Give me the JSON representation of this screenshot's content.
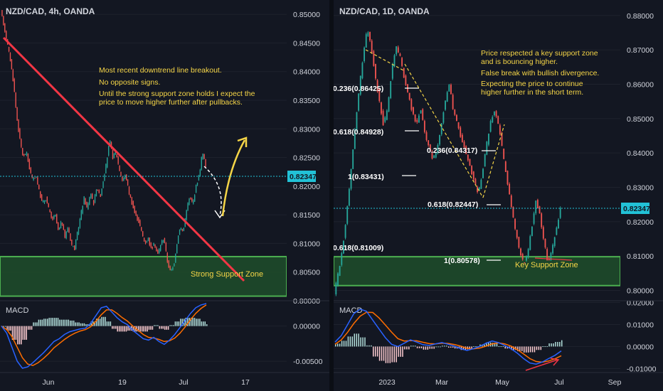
{
  "colors": {
    "background": "#131722",
    "candle_up": "#26a69a",
    "candle_down": "#ef5350",
    "zone_fill": "#1f4d2a",
    "zone_border": "#4caf50",
    "trendline": "#f23645",
    "annotation": "#f5d547",
    "price_box": "#22c1d6",
    "macd_line": "#2962ff",
    "signal_line": "#ff6d00"
  },
  "left": {
    "symbol": "NZD/CAD, 4h, OANDA",
    "annotations": [
      "Most recent downtrend line breakout.",
      "No opposite signs.",
      "Until the strong support zone holds I expect the",
      "price to move higher further after pullbacks."
    ],
    "zone_label": "Strong Support Zone",
    "current_price": "0.82347",
    "macd_label": "MACD"
  },
  "right": {
    "symbol": "NZD/CAD, 1D, OANDA",
    "annotations": [
      "Price respected a key support zone",
      "and is bouncing higher.",
      "False break with bullish divergence.",
      "Expecting the price to continue",
      "higher further in the short term."
    ],
    "fib_labels": [
      "0.236(0.86425)",
      "0.618(0.84928)",
      "0.236(0.84317)",
      "1(0.83431)",
      "0.618(0.82447)",
      "0.618(0.81009)",
      "1(0.80578)"
    ],
    "zone_label": "Key Support Zone",
    "current_price": "0.82347",
    "macd_label": "MACD"
  },
  "chart_data": [
    {
      "type": "candlestick",
      "title": "NZD/CAD, 4h, OANDA",
      "ylim": [
        0.8,
        0.8525
      ],
      "y_ticks": [
        "0.85000",
        "0.84500",
        "0.84000",
        "0.83500",
        "0.83000",
        "0.82500",
        "0.82000",
        "0.81500",
        "0.81000",
        "0.80500",
        "0.80000"
      ],
      "x_ticks": [
        "Jun",
        "19",
        "Jul",
        "17"
      ],
      "price_path": [
        0.8505,
        0.848,
        0.845,
        0.842,
        0.838,
        0.832,
        0.828,
        0.825,
        0.826,
        0.823,
        0.821,
        0.822,
        0.819,
        0.817,
        0.818,
        0.816,
        0.814,
        0.815,
        0.812,
        0.814,
        0.811,
        0.813,
        0.81,
        0.809,
        0.812,
        0.815,
        0.818,
        0.816,
        0.819,
        0.817,
        0.82,
        0.818,
        0.821,
        0.824,
        0.828,
        0.825,
        0.826,
        0.823,
        0.821,
        0.822,
        0.819,
        0.817,
        0.815,
        0.814,
        0.812,
        0.81,
        0.811,
        0.809,
        0.81,
        0.808,
        0.81,
        0.811,
        0.807,
        0.805,
        0.806,
        0.81,
        0.813,
        0.812,
        0.816,
        0.818,
        0.817,
        0.82,
        0.822,
        0.826,
        0.8235
      ],
      "support_zone": [
        0.8008,
        0.8077
      ],
      "current_price": 0.82347,
      "macd_ylim": [
        -0.0065,
        0.0035
      ],
      "macd_ticks": [
        "0.00000",
        "-0.00500"
      ],
      "macd_line": [
        0,
        -0.001,
        -0.003,
        -0.005,
        -0.006,
        -0.0058,
        -0.0052,
        -0.0045,
        -0.0038,
        -0.003,
        -0.0022,
        -0.0018,
        -0.0012,
        -0.0008,
        -0.0006,
        -0.0004,
        -0.0003,
        0.0004,
        0.0015,
        0.0026,
        0.0028,
        0.002,
        0.0012,
        0.0006,
        0.0002,
        -0.0006,
        -0.0012,
        -0.0018,
        -0.002,
        -0.0016,
        -0.0022,
        -0.0026,
        -0.002,
        -0.0012,
        -0.0002,
        0.0008,
        0.0018,
        0.0026,
        0.003,
        0.0032
      ],
      "signal_line": [
        0,
        -0.0005,
        -0.0015,
        -0.003,
        -0.0045,
        -0.0054,
        -0.0056,
        -0.0052,
        -0.0046,
        -0.0039,
        -0.0031,
        -0.0025,
        -0.0019,
        -0.0014,
        -0.001,
        -0.0007,
        -0.0005,
        -0.0001,
        0.0007,
        0.0016,
        0.0023,
        0.0023,
        0.0018,
        0.0012,
        0.0007,
        0.0,
        -0.0006,
        -0.0012,
        -0.0016,
        -0.0017,
        -0.0019,
        -0.0022,
        -0.0021,
        -0.0017,
        -0.001,
        -0.0001,
        0.0009,
        0.0018,
        0.0025,
        0.003
      ]
    },
    {
      "type": "candlestick",
      "title": "NZD/CAD, 1D, OANDA",
      "ylim": [
        0.797,
        0.8845
      ],
      "y_ticks": [
        "0.88000",
        "0.87000",
        "0.86000",
        "0.85000",
        "0.84000",
        "0.83000",
        "0.82000",
        "0.81000",
        "0.80000"
      ],
      "x_ticks": [
        "2023",
        "Mar",
        "May",
        "Jul",
        "Sep"
      ],
      "price_path": [
        0.799,
        0.805,
        0.812,
        0.822,
        0.834,
        0.846,
        0.858,
        0.868,
        0.876,
        0.871,
        0.862,
        0.855,
        0.848,
        0.853,
        0.864,
        0.871,
        0.868,
        0.862,
        0.857,
        0.852,
        0.848,
        0.853,
        0.846,
        0.842,
        0.838,
        0.841,
        0.848,
        0.855,
        0.86,
        0.852,
        0.848,
        0.844,
        0.84,
        0.836,
        0.832,
        0.828,
        0.834,
        0.842,
        0.849,
        0.852,
        0.848,
        0.84,
        0.832,
        0.825,
        0.818,
        0.812,
        0.808,
        0.81,
        0.818,
        0.826,
        0.822,
        0.814,
        0.808,
        0.812,
        0.818,
        0.8235
      ],
      "support_zone": [
        0.8014,
        0.8098
      ],
      "current_price": 0.82347,
      "macd_ylim": [
        -0.0115,
        0.0205
      ],
      "macd_ticks": [
        "0.02000",
        "0.01000",
        "0.00000",
        "-0.01000"
      ],
      "macd_line": [
        0.002,
        0.005,
        0.01,
        0.015,
        0.017,
        0.016,
        0.012,
        0.008,
        0.004,
        0.001,
        0.0,
        0.0015,
        0.003,
        0.002,
        0.0008,
        0.0005,
        0.0012,
        0.0018,
        0.001,
        0.0002,
        -0.001,
        -0.0018,
        -0.001,
        0.0,
        0.0015,
        0.0025,
        0.0018,
        0.0005,
        -0.001,
        -0.003,
        -0.0055,
        -0.0075,
        -0.008,
        -0.007,
        -0.0055,
        -0.004,
        -0.002
      ],
      "signal_line": [
        0.001,
        0.003,
        0.0065,
        0.0105,
        0.0138,
        0.0156,
        0.0155,
        0.013,
        0.0098,
        0.0065,
        0.0036,
        0.0025,
        0.0027,
        0.0026,
        0.0019,
        0.0013,
        0.0012,
        0.0015,
        0.0014,
        0.0009,
        0.0002,
        -0.0008,
        -0.0011,
        -0.0007,
        0.0001,
        0.0012,
        0.0017,
        0.0012,
        0.0002,
        -0.0014,
        -0.0034,
        -0.0055,
        -0.0068,
        -0.0071,
        -0.0066,
        -0.0056,
        -0.0042
      ]
    }
  ]
}
